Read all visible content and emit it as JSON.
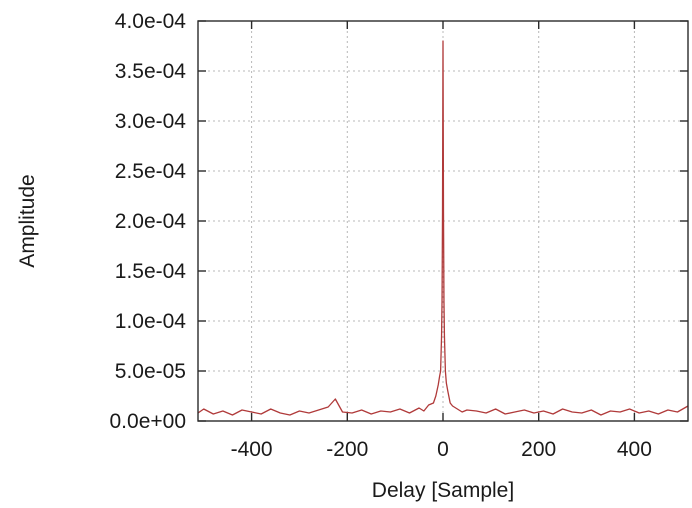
{
  "chart_data": {
    "type": "line",
    "title": "",
    "xlabel": "Delay [Sample]",
    "ylabel": "Amplitude",
    "xlim": [
      -512,
      512
    ],
    "ylim": [
      0,
      0.0004
    ],
    "grid": true,
    "x_ticks": [
      -400,
      -200,
      0,
      200,
      400
    ],
    "x_tick_labels": [
      "-400",
      "-200",
      "0",
      "200",
      "400"
    ],
    "y_ticks": [
      0,
      5e-05,
      0.0001,
      0.00015,
      0.0002,
      0.00025,
      0.0003,
      0.00035,
      0.0004
    ],
    "y_tick_labels": [
      "0.0e+00",
      "5.0e-05",
      "1.0e-04",
      "1.5e-04",
      "2.0e-04",
      "2.5e-04",
      "3.0e-04",
      "3.5e-04",
      "4.0e-04"
    ],
    "line_color": "#b03a3a",
    "series": [
      {
        "x": [
          -512,
          -500,
          -480,
          -460,
          -440,
          -420,
          -400,
          -380,
          -360,
          -340,
          -320,
          -300,
          -280,
          -260,
          -240,
          -225,
          -210,
          -190,
          -170,
          -150,
          -130,
          -110,
          -90,
          -70,
          -50,
          -40,
          -30,
          -20,
          -15,
          -10,
          -7,
          -5,
          -3,
          -2,
          -1,
          0,
          1,
          2,
          3,
          5,
          7,
          10,
          15,
          20,
          30,
          40,
          50,
          70,
          90,
          110,
          130,
          150,
          170,
          190,
          210,
          230,
          250,
          270,
          290,
          310,
          330,
          350,
          370,
          390,
          410,
          430,
          450,
          470,
          490,
          512
        ],
        "y": [
          8e-06,
          1.2e-05,
          7e-06,
          1e-05,
          6e-06,
          1.1e-05,
          9e-06,
          7e-06,
          1.2e-05,
          8e-06,
          6e-06,
          1e-05,
          8e-06,
          1.1e-05,
          1.4e-05,
          2.2e-05,
          9e-06,
          8e-06,
          1.1e-05,
          7e-06,
          1e-05,
          9e-06,
          1.2e-05,
          8e-06,
          1.3e-05,
          1e-05,
          1.6e-05,
          1.8e-05,
          2.5e-05,
          3.6e-05,
          4.5e-05,
          5e-05,
          8.5e-05,
          0.00012,
          0.00021,
          0.00038,
          0.00021,
          0.00012,
          8.5e-05,
          5e-05,
          3.8e-05,
          3e-05,
          1.8e-05,
          1.5e-05,
          1.2e-05,
          9e-06,
          1.1e-05,
          1e-05,
          8e-06,
          1.2e-05,
          7e-06,
          9e-06,
          1.1e-05,
          8e-06,
          1e-05,
          7e-06,
          1.2e-05,
          9e-06,
          8e-06,
          1.1e-05,
          6e-06,
          1e-05,
          9e-06,
          1.2e-05,
          8e-06,
          1e-05,
          7e-06,
          1.1e-05,
          9e-06,
          1.5e-05
        ]
      }
    ]
  }
}
